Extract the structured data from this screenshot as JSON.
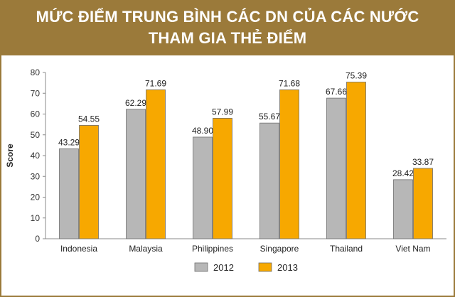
{
  "header": {
    "title_line1": "MỨC ĐIỂM TRUNG BÌNH CÁC DN CỦA CÁC NƯỚC",
    "title_line2": "THAM GIA THẺ ĐIỂM"
  },
  "colors": {
    "header_bg": "#9b7a3a",
    "series_2012": "#b7b7b7",
    "series_2013": "#f7a800",
    "bar_stroke": "#6e6e6e",
    "axis": "#888888"
  },
  "chart_data": {
    "type": "bar",
    "title": "MỨC ĐIỂM TRUNG BÌNH CÁC DN CỦA CÁC NƯỚC THAM GIA THẺ ĐIỂM",
    "xlabel": "",
    "ylabel": "Score",
    "ylim": [
      0,
      80
    ],
    "yticks": [
      0,
      10,
      20,
      30,
      40,
      50,
      60,
      70,
      80
    ],
    "grid": false,
    "legend_position": "bottom",
    "categories": [
      "Indonesia",
      "Malaysia",
      "Philippines",
      "Singapore",
      "Thailand",
      "Viet Nam"
    ],
    "series": [
      {
        "name": "2012",
        "values": [
          43.29,
          62.29,
          48.9,
          55.67,
          67.66,
          28.42
        ],
        "labels": [
          "43.29",
          "62.29",
          "48.90",
          "55.67",
          "67.66",
          "28.42"
        ]
      },
      {
        "name": "2013",
        "values": [
          54.55,
          71.69,
          57.99,
          71.68,
          75.39,
          33.87
        ],
        "labels": [
          "54.55",
          "71.69",
          "57.99",
          "71.68",
          "75.39",
          "33.87"
        ]
      }
    ]
  }
}
